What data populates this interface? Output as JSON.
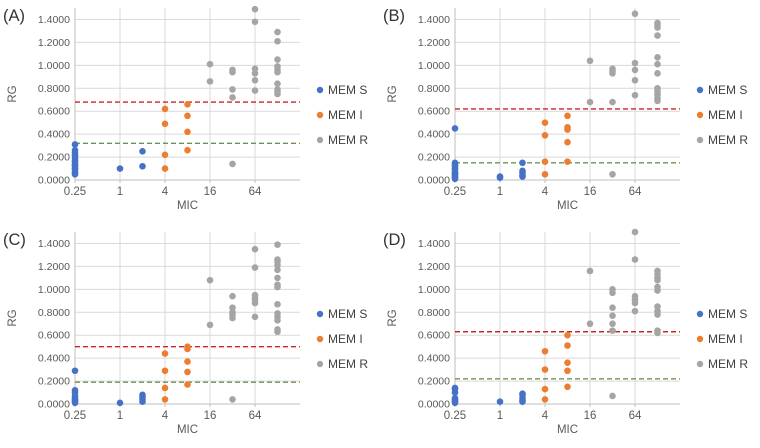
{
  "chart_data": {
    "type": "scatter",
    "x_scale": "log2",
    "xlabel": "MIC",
    "ylabel": "RG",
    "x_range": [
      0.25,
      256
    ],
    "y_range": [
      0,
      1.5
    ],
    "x_tick_values": [
      0.25,
      1,
      4,
      16,
      64
    ],
    "x_tick_labels": [
      "0.25",
      "1",
      "4",
      "16",
      "64"
    ],
    "y_tick_values": [
      0,
      0.2,
      0.4,
      0.6,
      0.8,
      1.0,
      1.2,
      1.4
    ],
    "y_tick_labels": [
      "0.0000",
      "0.2000",
      "0.4000",
      "0.6000",
      "0.8000",
      "1.0000",
      "1.2000",
      "1.4000"
    ],
    "grid": true,
    "legend_position": "right",
    "legend_entries": [
      "MEM S",
      "MEM I",
      "MEM R"
    ],
    "series_colors": {
      "MEM S": "#4472C4",
      "MEM I": "#ED7D31",
      "MEM R": "#A5A5A5"
    },
    "threshold_colors": {
      "red_dashed": "#C00000",
      "green_dashed": "#548235"
    },
    "panels": [
      {
        "label": "(A)",
        "thresholds": {
          "red_dashed_y": 0.68,
          "green_dashed_y": 0.32
        },
        "series": [
          {
            "name": "MEM S",
            "points": [
              [
                0.25,
                0.31
              ],
              [
                0.25,
                0.26
              ],
              [
                0.25,
                0.24
              ],
              [
                0.25,
                0.22
              ],
              [
                0.25,
                0.21
              ],
              [
                0.25,
                0.19
              ],
              [
                0.25,
                0.17
              ],
              [
                0.25,
                0.16
              ],
              [
                0.25,
                0.14
              ],
              [
                0.25,
                0.13
              ],
              [
                0.25,
                0.12
              ],
              [
                0.25,
                0.1
              ],
              [
                0.25,
                0.09
              ],
              [
                0.25,
                0.07
              ],
              [
                0.25,
                0.06
              ],
              [
                0.25,
                0.05
              ],
              [
                1,
                0.1
              ],
              [
                2,
                0.25
              ],
              [
                2,
                0.12
              ]
            ]
          },
          {
            "name": "MEM I",
            "points": [
              [
                4,
                0.62
              ],
              [
                4,
                0.49
              ],
              [
                4,
                0.22
              ],
              [
                4,
                0.1
              ],
              [
                8,
                0.66
              ],
              [
                8,
                0.56
              ],
              [
                8,
                0.42
              ],
              [
                8,
                0.26
              ]
            ]
          },
          {
            "name": "MEM R",
            "points": [
              [
                16,
                1.01
              ],
              [
                16,
                0.86
              ],
              [
                32,
                0.96
              ],
              [
                32,
                0.94
              ],
              [
                32,
                0.79
              ],
              [
                32,
                0.72
              ],
              [
                32,
                0.14
              ],
              [
                64,
                1.49
              ],
              [
                64,
                1.38
              ],
              [
                64,
                0.97
              ],
              [
                64,
                0.93
              ],
              [
                64,
                0.87
              ],
              [
                64,
                0.78
              ],
              [
                128,
                1.29
              ],
              [
                128,
                1.21
              ],
              [
                128,
                1.05
              ],
              [
                128,
                0.99
              ],
              [
                128,
                0.96
              ],
              [
                128,
                0.94
              ],
              [
                128,
                0.84
              ],
              [
                128,
                0.79
              ],
              [
                128,
                0.77
              ],
              [
                128,
                0.75
              ]
            ]
          }
        ]
      },
      {
        "label": "(B)",
        "thresholds": {
          "red_dashed_y": 0.62,
          "green_dashed_y": 0.15
        },
        "series": [
          {
            "name": "MEM S",
            "points": [
              [
                0.25,
                0.45
              ],
              [
                0.25,
                0.15
              ],
              [
                0.25,
                0.13
              ],
              [
                0.25,
                0.12
              ],
              [
                0.25,
                0.1
              ],
              [
                0.25,
                0.09
              ],
              [
                0.25,
                0.07
              ],
              [
                0.25,
                0.06
              ],
              [
                0.25,
                0.05
              ],
              [
                0.25,
                0.04
              ],
              [
                0.25,
                0.03
              ],
              [
                0.25,
                0.02
              ],
              [
                0.25,
                0.01
              ],
              [
                1,
                0.03
              ],
              [
                1,
                0.02
              ],
              [
                2,
                0.15
              ],
              [
                2,
                0.08
              ],
              [
                2,
                0.06
              ],
              [
                2,
                0.04
              ],
              [
                2,
                0.03
              ]
            ]
          },
          {
            "name": "MEM I",
            "points": [
              [
                4,
                0.5
              ],
              [
                4,
                0.39
              ],
              [
                4,
                0.16
              ],
              [
                4,
                0.05
              ],
              [
                8,
                0.56
              ],
              [
                8,
                0.46
              ],
              [
                8,
                0.44
              ],
              [
                8,
                0.33
              ],
              [
                8,
                0.16
              ]
            ]
          },
          {
            "name": "MEM R",
            "points": [
              [
                16,
                1.04
              ],
              [
                16,
                0.68
              ],
              [
                32,
                0.97
              ],
              [
                32,
                0.95
              ],
              [
                32,
                0.93
              ],
              [
                32,
                0.68
              ],
              [
                32,
                0.05
              ],
              [
                64,
                1.45
              ],
              [
                64,
                1.02
              ],
              [
                64,
                0.96
              ],
              [
                64,
                0.87
              ],
              [
                64,
                0.74
              ],
              [
                128,
                1.37
              ],
              [
                128,
                1.35
              ],
              [
                128,
                1.33
              ],
              [
                128,
                1.26
              ],
              [
                128,
                1.07
              ],
              [
                128,
                1.01
              ],
              [
                128,
                0.93
              ],
              [
                128,
                0.8
              ],
              [
                128,
                0.78
              ],
              [
                128,
                0.76
              ],
              [
                128,
                0.74
              ],
              [
                128,
                0.71
              ],
              [
                128,
                0.69
              ]
            ]
          }
        ]
      },
      {
        "label": "(C)",
        "thresholds": {
          "red_dashed_y": 0.5,
          "green_dashed_y": 0.19
        },
        "series": [
          {
            "name": "MEM S",
            "points": [
              [
                0.25,
                0.29
              ],
              [
                0.25,
                0.12
              ],
              [
                0.25,
                0.1
              ],
              [
                0.25,
                0.07
              ],
              [
                0.25,
                0.05
              ],
              [
                0.25,
                0.04
              ],
              [
                0.25,
                0.03
              ],
              [
                0.25,
                0.02
              ],
              [
                0.25,
                0.01
              ],
              [
                1,
                0.01
              ],
              [
                2,
                0.08
              ],
              [
                2,
                0.06
              ],
              [
                2,
                0.04
              ],
              [
                2,
                0.02
              ]
            ]
          },
          {
            "name": "MEM I",
            "points": [
              [
                4,
                0.44
              ],
              [
                4,
                0.29
              ],
              [
                4,
                0.14
              ],
              [
                4,
                0.04
              ],
              [
                8,
                0.5
              ],
              [
                8,
                0.48
              ],
              [
                8,
                0.37
              ],
              [
                8,
                0.28
              ],
              [
                8,
                0.17
              ]
            ]
          },
          {
            "name": "MEM R",
            "points": [
              [
                16,
                1.08
              ],
              [
                16,
                0.69
              ],
              [
                32,
                0.94
              ],
              [
                32,
                0.84
              ],
              [
                32,
                0.8
              ],
              [
                32,
                0.78
              ],
              [
                32,
                0.75
              ],
              [
                32,
                0.04
              ],
              [
                64,
                1.35
              ],
              [
                64,
                1.19
              ],
              [
                64,
                0.95
              ],
              [
                64,
                0.93
              ],
              [
                64,
                0.91
              ],
              [
                64,
                0.88
              ],
              [
                64,
                0.76
              ],
              [
                128,
                1.39
              ],
              [
                128,
                1.26
              ],
              [
                128,
                1.24
              ],
              [
                128,
                1.21
              ],
              [
                128,
                1.17
              ],
              [
                128,
                1.1
              ],
              [
                128,
                1.04
              ],
              [
                128,
                1.02
              ],
              [
                128,
                0.87
              ],
              [
                128,
                0.79
              ],
              [
                128,
                0.76
              ],
              [
                128,
                0.73
              ],
              [
                128,
                0.65
              ],
              [
                128,
                0.63
              ]
            ]
          }
        ]
      },
      {
        "label": "(D)",
        "thresholds": {
          "red_dashed_y": 0.63,
          "green_dashed_y": 0.22
        },
        "series": [
          {
            "name": "MEM S",
            "points": [
              [
                0.25,
                0.14
              ],
              [
                0.25,
                0.13
              ],
              [
                0.25,
                0.1
              ],
              [
                0.25,
                0.05
              ],
              [
                0.25,
                0.04
              ],
              [
                0.25,
                0.03
              ],
              [
                0.25,
                0.02
              ],
              [
                0.25,
                0.01
              ],
              [
                1,
                0.02
              ],
              [
                2,
                0.09
              ],
              [
                2,
                0.08
              ],
              [
                2,
                0.05
              ],
              [
                2,
                0.03
              ],
              [
                2,
                0.02
              ]
            ]
          },
          {
            "name": "MEM I",
            "points": [
              [
                4,
                0.46
              ],
              [
                4,
                0.3
              ],
              [
                4,
                0.13
              ],
              [
                4,
                0.04
              ],
              [
                8,
                0.6
              ],
              [
                8,
                0.51
              ],
              [
                8,
                0.36
              ],
              [
                8,
                0.29
              ],
              [
                8,
                0.15
              ]
            ]
          },
          {
            "name": "MEM R",
            "points": [
              [
                16,
                1.16
              ],
              [
                16,
                0.7
              ],
              [
                32,
                1.0
              ],
              [
                32,
                0.97
              ],
              [
                32,
                0.84
              ],
              [
                32,
                0.77
              ],
              [
                32,
                0.7
              ],
              [
                32,
                0.64
              ],
              [
                32,
                0.07
              ],
              [
                64,
                1.5
              ],
              [
                64,
                1.26
              ],
              [
                64,
                0.94
              ],
              [
                64,
                0.91
              ],
              [
                64,
                0.88
              ],
              [
                64,
                0.81
              ],
              [
                128,
                1.16
              ],
              [
                128,
                1.13
              ],
              [
                128,
                1.1
              ],
              [
                128,
                1.08
              ],
              [
                128,
                1.02
              ],
              [
                128,
                0.99
              ],
              [
                128,
                0.85
              ],
              [
                128,
                0.81
              ],
              [
                128,
                0.78
              ],
              [
                128,
                0.64
              ],
              [
                128,
                0.62
              ]
            ]
          }
        ]
      }
    ],
    "style_colors": {
      "gridline": "#D9D9D9",
      "axis_line": "#BFBFBF",
      "tick_label": "#595959",
      "axis_title": "#595959",
      "panel_label": "#333333",
      "legend_text": "#404040"
    }
  }
}
